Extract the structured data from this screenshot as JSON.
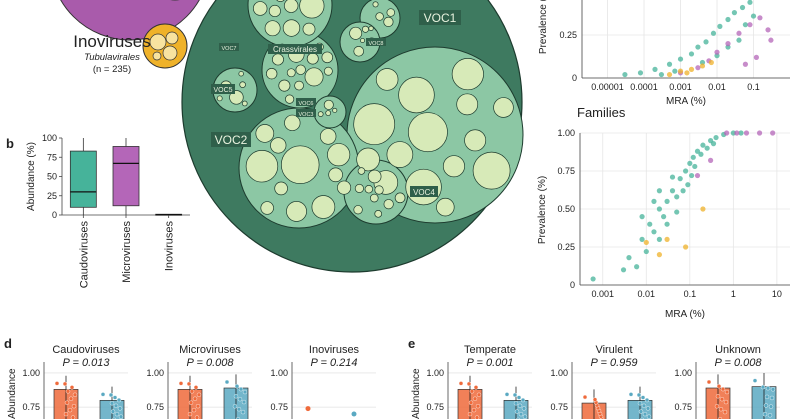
{
  "figure": {
    "inoviruses_label": "Inoviruses",
    "inoviruses_order": "Tubulavirales",
    "inoviruses_n": "(n = 235)",
    "voc_labels": [
      "VOC1",
      "VOC2",
      "VOC3",
      "VOC4",
      "VOC5",
      "VOC6",
      "VOC7",
      "VOC8"
    ],
    "crassvirales_label": "Crassvirales",
    "panel_b": "b",
    "panel_d": "d",
    "panel_e": "e",
    "families_title": "Families",
    "colors": {
      "dark_green": "#3e7a60",
      "mid_green": "#8cc7a4",
      "pale_green": "#d7eab8",
      "teal": "#46b39a",
      "purple": "#b466b8",
      "orange": "#efb22a",
      "red": "#ef6a3b",
      "blue": "#5aa9c2"
    }
  },
  "chart_data": [
    {
      "id": "scatter-species",
      "type": "scatter",
      "title": "",
      "xlabel": "MRA (%)",
      "ylabel": "Prevalence (%)",
      "xscale": "log",
      "xlim": [
        2e-06,
        1
      ],
      "ylim": [
        0,
        0.5
      ],
      "xticks": [
        1e-05,
        0.0001,
        0.001,
        0.01,
        0.1
      ],
      "xtick_labels": [
        "0.00001",
        "0.0001",
        "0.001",
        "0.01",
        "0.1"
      ],
      "yticks": [
        0,
        0.25
      ],
      "ytick_labels": [
        "0",
        "0.25"
      ],
      "series": [
        {
          "name": "Caudoviruses",
          "color": "#46b39a",
          "points": [
            [
              3e-05,
              0.02
            ],
            [
              8e-05,
              0.03
            ],
            [
              0.0002,
              0.05
            ],
            [
              0.0005,
              0.08
            ],
            [
              0.001,
              0.11
            ],
            [
              0.002,
              0.14
            ],
            [
              0.003,
              0.18
            ],
            [
              0.005,
              0.21
            ],
            [
              0.008,
              0.26
            ],
            [
              0.012,
              0.3
            ],
            [
              0.02,
              0.34
            ],
            [
              0.03,
              0.38
            ],
            [
              0.05,
              0.41
            ],
            [
              0.08,
              0.44
            ],
            [
              0.0003,
              0.02
            ],
            [
              0.0007,
              0.04
            ],
            [
              0.004,
              0.09
            ],
            [
              0.01,
              0.13
            ],
            [
              0.02,
              0.18
            ],
            [
              0.04,
              0.22
            ],
            [
              0.06,
              0.31
            ],
            [
              0.1,
              0.36
            ]
          ]
        },
        {
          "name": "Microviruses",
          "color": "#b466b8",
          "points": [
            [
              0.001,
              0.03
            ],
            [
              0.003,
              0.06
            ],
            [
              0.006,
              0.1
            ],
            [
              0.01,
              0.15
            ],
            [
              0.02,
              0.2
            ],
            [
              0.04,
              0.26
            ],
            [
              0.08,
              0.31
            ],
            [
              0.15,
              0.35
            ],
            [
              0.25,
              0.28
            ],
            [
              0.3,
              0.22
            ],
            [
              0.12,
              0.12
            ],
            [
              0.06,
              0.08
            ]
          ]
        },
        {
          "name": "Inoviruses",
          "color": "#efb22a",
          "points": [
            [
              0.0005,
              0.02
            ],
            [
              0.001,
              0.04
            ],
            [
              0.002,
              0.05
            ],
            [
              0.004,
              0.07
            ],
            [
              0.007,
              0.09
            ],
            [
              0.0015,
              0.03
            ]
          ]
        }
      ]
    },
    {
      "id": "box-abundance",
      "type": "box",
      "title": "",
      "xlabel": "",
      "ylabel": "Abundance (%)",
      "ylim": [
        0,
        100
      ],
      "yticks": [
        0,
        25,
        50,
        75,
        100
      ],
      "ytick_labels": [
        "0",
        "25",
        "50",
        "75",
        "100"
      ],
      "categories": [
        "Caudoviruses",
        "Microviruses",
        "Inoviruses"
      ],
      "boxes": [
        {
          "name": "Caudoviruses",
          "min": 0,
          "q1": 10,
          "median": 30,
          "q3": 83,
          "max": 100,
          "color": "#46b39a"
        },
        {
          "name": "Microviruses",
          "min": 0,
          "q1": 12,
          "median": 67,
          "q3": 89,
          "max": 100,
          "color": "#b466b8"
        },
        {
          "name": "Inoviruses",
          "min": 0,
          "q1": 0,
          "median": 0.5,
          "q3": 1,
          "max": 1,
          "color": "#efb22a"
        }
      ]
    },
    {
      "id": "scatter-families",
      "type": "scatter",
      "title": "Families",
      "xlabel": "MRA (%)",
      "ylabel": "Prevalence (%)",
      "xscale": "log",
      "xlim": [
        0.0003,
        20
      ],
      "ylim": [
        0,
        1
      ],
      "xticks": [
        0.001,
        0.01,
        0.1,
        1,
        10
      ],
      "xtick_labels": [
        "0.001",
        "0.01",
        "0.1",
        "1",
        "10"
      ],
      "yticks": [
        0,
        0.25,
        0.5,
        0.75,
        1
      ],
      "ytick_labels": [
        "0",
        "0.25",
        "0.50",
        "0.75",
        "1.00"
      ],
      "series": [
        {
          "name": "Caudoviruses",
          "color": "#46b39a",
          "points": [
            [
              0.0006,
              0.04
            ],
            [
              0.003,
              0.1
            ],
            [
              0.004,
              0.18
            ],
            [
              0.006,
              0.12
            ],
            [
              0.008,
              0.3
            ],
            [
              0.01,
              0.22
            ],
            [
              0.012,
              0.4
            ],
            [
              0.015,
              0.35
            ],
            [
              0.02,
              0.5
            ],
            [
              0.025,
              0.45
            ],
            [
              0.03,
              0.55
            ],
            [
              0.04,
              0.62
            ],
            [
              0.05,
              0.58
            ],
            [
              0.06,
              0.7
            ],
            [
              0.08,
              0.75
            ],
            [
              0.1,
              0.8
            ],
            [
              0.12,
              0.84
            ],
            [
              0.15,
              0.88
            ],
            [
              0.2,
              0.92
            ],
            [
              0.3,
              0.95
            ],
            [
              0.4,
              0.97
            ],
            [
              0.6,
              0.99
            ],
            [
              1,
              1
            ],
            [
              1.5,
              1
            ],
            [
              0.02,
              0.3
            ],
            [
              0.03,
              0.4
            ],
            [
              0.05,
              0.48
            ],
            [
              0.07,
              0.62
            ],
            [
              0.09,
              0.66
            ],
            [
              0.11,
              0.72
            ],
            [
              0.13,
              0.78
            ],
            [
              0.18,
              0.86
            ],
            [
              0.25,
              0.9
            ],
            [
              0.35,
              0.93
            ],
            [
              0.02,
              0.62
            ],
            [
              0.04,
              0.71
            ],
            [
              0.015,
              0.55
            ],
            [
              0.008,
              0.45
            ]
          ]
        },
        {
          "name": "Microviruses",
          "color": "#b466b8",
          "points": [
            [
              2,
              1
            ],
            [
              4,
              1
            ],
            [
              8,
              1
            ],
            [
              1.2,
              1
            ],
            [
              0.7,
              1
            ],
            [
              0.15,
              0.72
            ],
            [
              0.3,
              0.82
            ]
          ]
        },
        {
          "name": "Inoviruses",
          "color": "#efb22a",
          "points": [
            [
              0.01,
              0.28
            ],
            [
              0.02,
              0.2
            ],
            [
              0.03,
              0.3
            ],
            [
              0.08,
              0.25
            ],
            [
              0.2,
              0.5
            ]
          ]
        }
      ]
    },
    {
      "id": "panel-d",
      "type": "box",
      "panel": "d",
      "ylabel": "Abundance",
      "yticks": [
        0.75,
        1.0
      ],
      "ytick_labels": [
        "0.75",
        "1.00"
      ],
      "ylim": [
        0.62,
        1.08
      ],
      "groups": [
        {
          "title": "Caudoviruses",
          "p": "P = 0.013",
          "bars": [
            {
              "value": 0.88,
              "color": "#ef6a3b"
            },
            {
              "value": 0.8,
              "color": "#5aa9c2"
            }
          ]
        },
        {
          "title": "Microviruses",
          "p": "P = 0.008",
          "bars": [
            {
              "value": 0.88,
              "color": "#ef6a3b"
            },
            {
              "value": 0.89,
              "color": "#5aa9c2"
            }
          ]
        },
        {
          "title": "Inoviruses",
          "p": "P = 0.214",
          "bars": [
            {
              "value": 0.74,
              "color": "#ef6a3b"
            },
            {
              "value": 0.7,
              "color": "#5aa9c2"
            }
          ]
        }
      ]
    },
    {
      "id": "panel-e",
      "type": "box",
      "panel": "e",
      "ylabel": "Abundance",
      "yticks": [
        0.75,
        1.0
      ],
      "ytick_labels": [
        "0.75",
        "1.00"
      ],
      "ylim": [
        0.62,
        1.08
      ],
      "groups": [
        {
          "title": "Temperate",
          "p": "P = 0.001",
          "bars": [
            {
              "value": 0.88,
              "color": "#ef6a3b"
            },
            {
              "value": 0.8,
              "color": "#5aa9c2"
            }
          ]
        },
        {
          "title": "Virulent",
          "p": "P = 0.959",
          "bars": [
            {
              "value": 0.78,
              "color": "#ef6a3b"
            },
            {
              "value": 0.8,
              "color": "#5aa9c2"
            }
          ]
        },
        {
          "title": "Unknown",
          "p": "P = 0.008",
          "bars": [
            {
              "value": 0.89,
              "color": "#ef6a3b"
            },
            {
              "value": 0.9,
              "color": "#5aa9c2"
            }
          ]
        }
      ]
    }
  ]
}
